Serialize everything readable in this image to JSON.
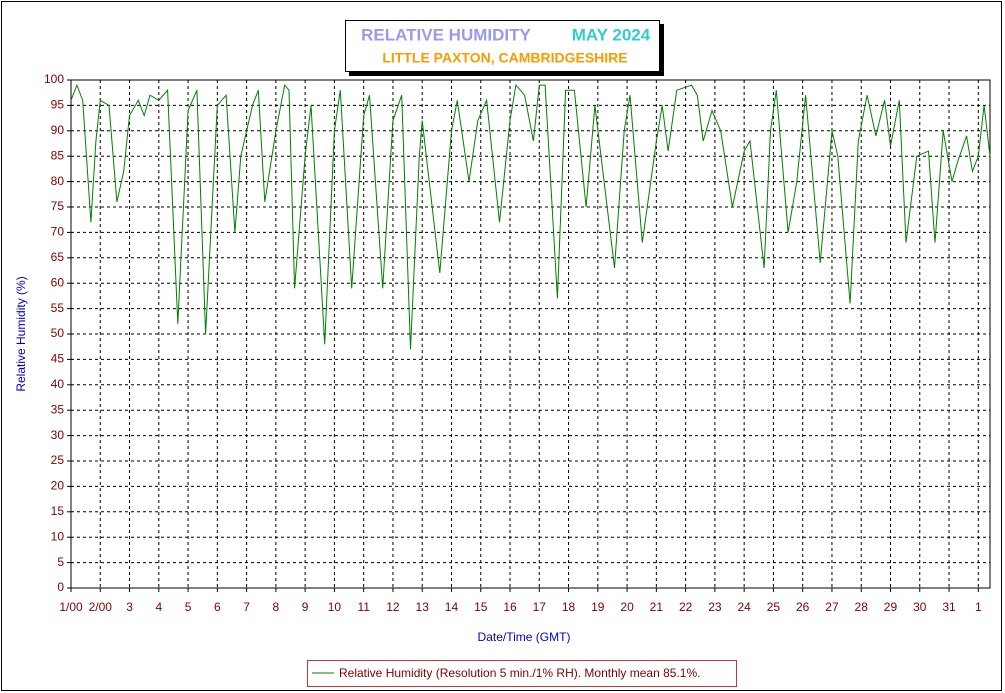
{
  "chart_data": {
    "type": "line",
    "title": "RELATIVE HUMIDITY",
    "title_period": "MAY 2024",
    "subtitle": "LITTLE PAXTON, CAMBRIDGESHIRE",
    "x_label": "Date/Time (GMT)",
    "y_label": "Relative Humidity (%)",
    "grid": true,
    "legend": "bottom",
    "xlim": [
      1,
      32.4
    ],
    "ylim": [
      0,
      100
    ],
    "yticks": [
      0,
      5,
      10,
      15,
      20,
      25,
      30,
      35,
      40,
      45,
      50,
      55,
      60,
      65,
      70,
      75,
      80,
      85,
      90,
      95,
      100
    ],
    "xticks": [
      {
        "value": 1,
        "label": "1/00"
      },
      {
        "value": 2,
        "label": "2/00"
      },
      3,
      4,
      5,
      6,
      7,
      8,
      9,
      10,
      11,
      12,
      13,
      14,
      15,
      16,
      17,
      18,
      19,
      20,
      21,
      22,
      23,
      24,
      25,
      26,
      27,
      28,
      29,
      30,
      31,
      {
        "value": 32,
        "label": "1"
      }
    ],
    "series": [
      {
        "name": "Relative Humidity (Resolution 5 min./1% RH). Monthly mean 85.1%.",
        "color": "#008000",
        "x": [
          1.0,
          1.2,
          1.4,
          1.68,
          1.85,
          2.0,
          2.3,
          2.57,
          2.8,
          3.0,
          3.3,
          3.5,
          3.7,
          4.0,
          4.3,
          4.65,
          5.0,
          5.3,
          5.6,
          6.0,
          6.3,
          6.6,
          6.8,
          7.2,
          7.4,
          7.62,
          8.0,
          8.3,
          8.45,
          8.64,
          9.0,
          9.2,
          9.67,
          10.0,
          10.2,
          10.59,
          11.0,
          11.2,
          11.65,
          12.0,
          12.3,
          12.6,
          12.9,
          13.0,
          13.6,
          14.0,
          14.2,
          14.6,
          14.9,
          15.2,
          15.64,
          16.0,
          16.2,
          16.5,
          16.8,
          17.0,
          17.2,
          17.62,
          17.9,
          18.2,
          18.6,
          18.9,
          19.57,
          19.9,
          20.1,
          20.52,
          21.0,
          21.2,
          21.4,
          21.7,
          22.2,
          22.4,
          22.6,
          22.9,
          23.2,
          23.6,
          24.0,
          24.2,
          24.68,
          24.9,
          25.1,
          25.5,
          25.8,
          26.1,
          26.6,
          27.0,
          27.2,
          27.62,
          27.9,
          28.2,
          28.5,
          28.8,
          29.0,
          29.3,
          29.53,
          29.9,
          30.3,
          30.52,
          30.8,
          31.1,
          31.3,
          31.6,
          31.8,
          32.0,
          32.2,
          32.4
        ],
        "values": [
          96,
          99,
          96,
          72,
          88,
          96,
          95,
          76,
          82,
          93,
          96,
          93,
          97,
          96,
          98,
          52,
          94,
          98,
          50,
          95,
          97,
          70,
          85,
          95,
          98,
          76,
          90,
          99,
          98,
          59,
          85,
          95,
          48,
          90,
          98,
          59,
          93,
          97,
          59,
          92,
          97,
          47,
          85,
          92,
          62,
          90,
          96,
          80,
          92,
          96,
          72,
          92,
          99,
          97,
          88,
          99,
          99,
          57,
          98,
          98,
          75,
          95,
          63,
          90,
          97,
          68,
          88,
          95,
          86,
          98,
          99,
          97,
          88,
          94,
          90,
          75,
          86,
          88,
          63,
          90,
          98,
          70,
          80,
          97,
          64,
          90,
          85,
          56,
          88,
          97,
          89,
          96,
          87,
          96,
          68,
          85,
          86,
          68,
          90,
          80,
          84,
          89,
          82,
          85,
          95,
          85
        ]
      }
    ]
  }
}
